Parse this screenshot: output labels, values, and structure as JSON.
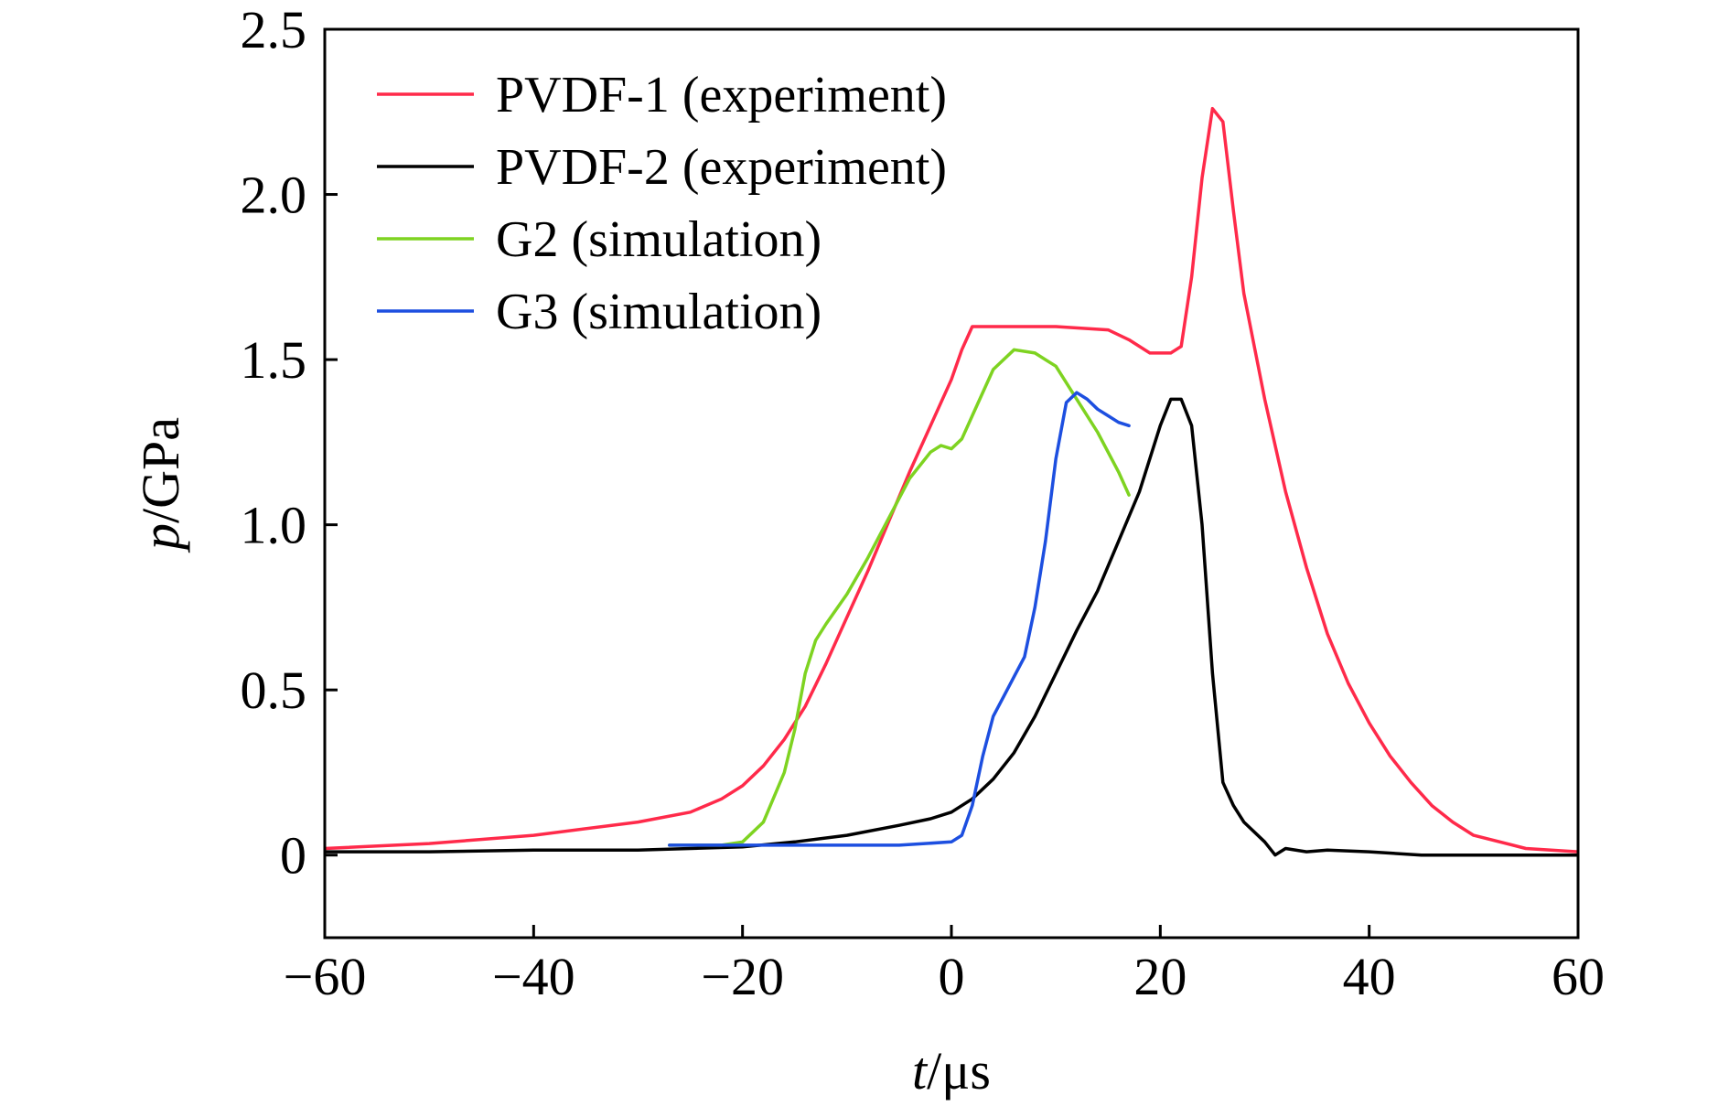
{
  "chart_data": {
    "type": "line",
    "xlabel_var": "t",
    "xlabel_unit": "/μs",
    "ylabel_var": "p",
    "ylabel_unit": "/GPa",
    "xlim": [
      -60,
      60
    ],
    "ylim": [
      -0.25,
      2.5
    ],
    "x_ticks": [
      -60,
      -40,
      -20,
      0,
      20,
      40,
      60
    ],
    "x_tick_labels": [
      "−60",
      "−40",
      "−20",
      "0",
      "20",
      "40",
      "60"
    ],
    "y_ticks": [
      0,
      0.5,
      1.0,
      1.5,
      2.0,
      2.5
    ],
    "y_tick_labels": [
      "0",
      "0.5",
      "1.0",
      "1.5",
      "2.0",
      "2.5"
    ],
    "grid": false,
    "legend_position": "top-left",
    "series": [
      {
        "name": "PVDF-1 (experiment)",
        "color": "#ff2a4a",
        "x": [
          -60,
          -50,
          -40,
          -30,
          -25,
          -22,
          -20,
          -18,
          -16,
          -14,
          -12,
          -10,
          -8,
          -6,
          -4,
          -2,
          0,
          1,
          2,
          5,
          10,
          15,
          17,
          19,
          20,
          21,
          22,
          23,
          24,
          25,
          26,
          27,
          28,
          30,
          32,
          34,
          36,
          38,
          40,
          42,
          44,
          46,
          48,
          50,
          55,
          60
        ],
        "y": [
          0.02,
          0.035,
          0.06,
          0.1,
          0.13,
          0.17,
          0.21,
          0.27,
          0.35,
          0.45,
          0.58,
          0.72,
          0.86,
          1.01,
          1.16,
          1.3,
          1.44,
          1.53,
          1.6,
          1.6,
          1.6,
          1.59,
          1.56,
          1.52,
          1.52,
          1.52,
          1.54,
          1.75,
          2.05,
          2.26,
          2.22,
          1.95,
          1.7,
          1.38,
          1.1,
          0.87,
          0.67,
          0.52,
          0.4,
          0.3,
          0.22,
          0.15,
          0.1,
          0.06,
          0.02,
          0.01
        ]
      },
      {
        "name": "PVDF-2 (experiment)",
        "color": "#000000",
        "x": [
          -60,
          -50,
          -40,
          -30,
          -20,
          -15,
          -10,
          -5,
          -2,
          0,
          2,
          4,
          6,
          8,
          10,
          12,
          14,
          16,
          18,
          20,
          21,
          22,
          23,
          24,
          25,
          26,
          27,
          28,
          30,
          31,
          32,
          34,
          36,
          40,
          45,
          50,
          55,
          60
        ],
        "y": [
          0.01,
          0.01,
          0.015,
          0.015,
          0.025,
          0.04,
          0.06,
          0.09,
          0.11,
          0.13,
          0.17,
          0.23,
          0.31,
          0.42,
          0.55,
          0.68,
          0.8,
          0.95,
          1.1,
          1.3,
          1.38,
          1.38,
          1.3,
          1.0,
          0.55,
          0.22,
          0.15,
          0.1,
          0.04,
          0.0,
          0.02,
          0.01,
          0.015,
          0.01,
          0.0,
          0.0,
          0.0,
          0.0
        ]
      },
      {
        "name": "G2 (simulation)",
        "color": "#7ed321",
        "x": [
          -27,
          -22,
          -20,
          -18,
          -16,
          -15,
          -14,
          -13,
          -12,
          -10,
          -8,
          -6,
          -4,
          -2,
          -1,
          0,
          1,
          2,
          4,
          6,
          8,
          10,
          12,
          14,
          16,
          17
        ],
        "y": [
          0.03,
          0.03,
          0.04,
          0.1,
          0.25,
          0.38,
          0.55,
          0.65,
          0.7,
          0.79,
          0.9,
          1.02,
          1.14,
          1.22,
          1.24,
          1.23,
          1.26,
          1.33,
          1.47,
          1.53,
          1.52,
          1.48,
          1.38,
          1.28,
          1.16,
          1.09
        ]
      },
      {
        "name": "G3 (simulation)",
        "color": "#1d4fe0",
        "x": [
          -27,
          -20,
          -10,
          -5,
          0,
          1,
          2,
          3,
          4,
          5,
          6,
          7,
          8,
          9,
          10,
          11,
          12,
          13,
          14,
          15,
          16,
          17
        ],
        "y": [
          0.03,
          0.03,
          0.03,
          0.03,
          0.04,
          0.06,
          0.15,
          0.3,
          0.42,
          0.48,
          0.54,
          0.6,
          0.75,
          0.95,
          1.2,
          1.37,
          1.4,
          1.38,
          1.35,
          1.33,
          1.31,
          1.3
        ]
      }
    ]
  }
}
